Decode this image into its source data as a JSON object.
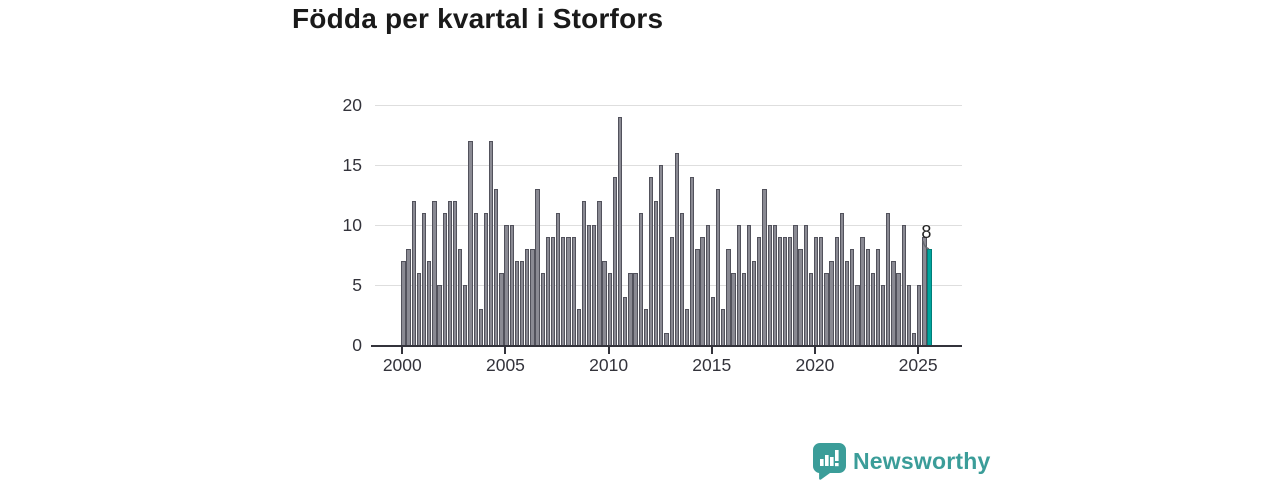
{
  "title": "Födda per kvartal i Storfors",
  "branding": {
    "name": "Newsworthy",
    "color": "#3b9d99"
  },
  "colors": {
    "bar": "#8a8a93",
    "bar_border": "#52525c",
    "highlight": "#00a59e",
    "highlight_border": "#007d78",
    "grid": "#dedede",
    "axis": "#33333b",
    "title_text": "#1a1a1a"
  },
  "chart_data": {
    "type": "bar",
    "title": "Födda per kvartal i Storfors",
    "frequency": "quarterly",
    "start": "2000-Q1",
    "end": "2025-Q3",
    "xlabel": "",
    "ylabel": "",
    "ylim": [
      0,
      20
    ],
    "grid": "horizontal",
    "y_ticks": [
      0,
      5,
      10,
      15,
      20
    ],
    "x_tick_years": [
      2000,
      2005,
      2010,
      2015,
      2020,
      2025
    ],
    "x_tick_labels": [
      "2000",
      "2005",
      "2010",
      "2015",
      "2020",
      "2025"
    ],
    "highlight_last": true,
    "last_value_label": "8",
    "values": [
      7,
      8,
      12,
      6,
      11,
      7,
      12,
      5,
      11,
      12,
      12,
      8,
      5,
      17,
      11,
      3,
      11,
      17,
      13,
      6,
      10,
      10,
      7,
      7,
      8,
      8,
      13,
      6,
      9,
      9,
      11,
      9,
      9,
      9,
      3,
      12,
      10,
      10,
      12,
      7,
      6,
      14,
      19,
      4,
      6,
      6,
      11,
      3,
      14,
      12,
      15,
      1,
      9,
      16,
      11,
      3,
      14,
      8,
      9,
      10,
      4,
      13,
      3,
      8,
      6,
      10,
      6,
      10,
      7,
      9,
      13,
      10,
      10,
      9,
      9,
      9,
      10,
      8,
      10,
      6,
      9,
      9,
      6,
      7,
      9,
      11,
      7,
      8,
      5,
      9,
      8,
      6,
      8,
      5,
      11,
      7,
      6,
      10,
      5,
      1,
      5,
      9,
      8
    ]
  }
}
